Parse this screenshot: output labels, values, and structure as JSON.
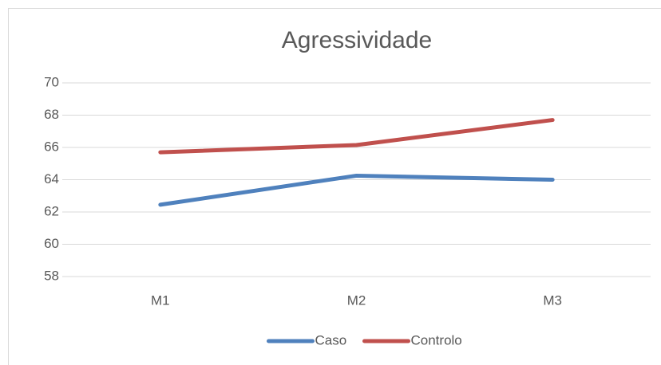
{
  "chart_data": {
    "type": "line",
    "title": "Agressividade",
    "categories": [
      "M1",
      "M2",
      "M3"
    ],
    "series": [
      {
        "name": "Caso",
        "color": "#4f81bd",
        "values": [
          62.45,
          64.25,
          64.0
        ]
      },
      {
        "name": "Controlo",
        "color": "#c0504d",
        "values": [
          65.7,
          66.15,
          67.7
        ]
      }
    ],
    "ylim": [
      58,
      70
    ],
    "yticks": [
      58,
      60,
      62,
      64,
      66,
      68,
      70
    ],
    "grid": true,
    "legend": "bottom"
  }
}
